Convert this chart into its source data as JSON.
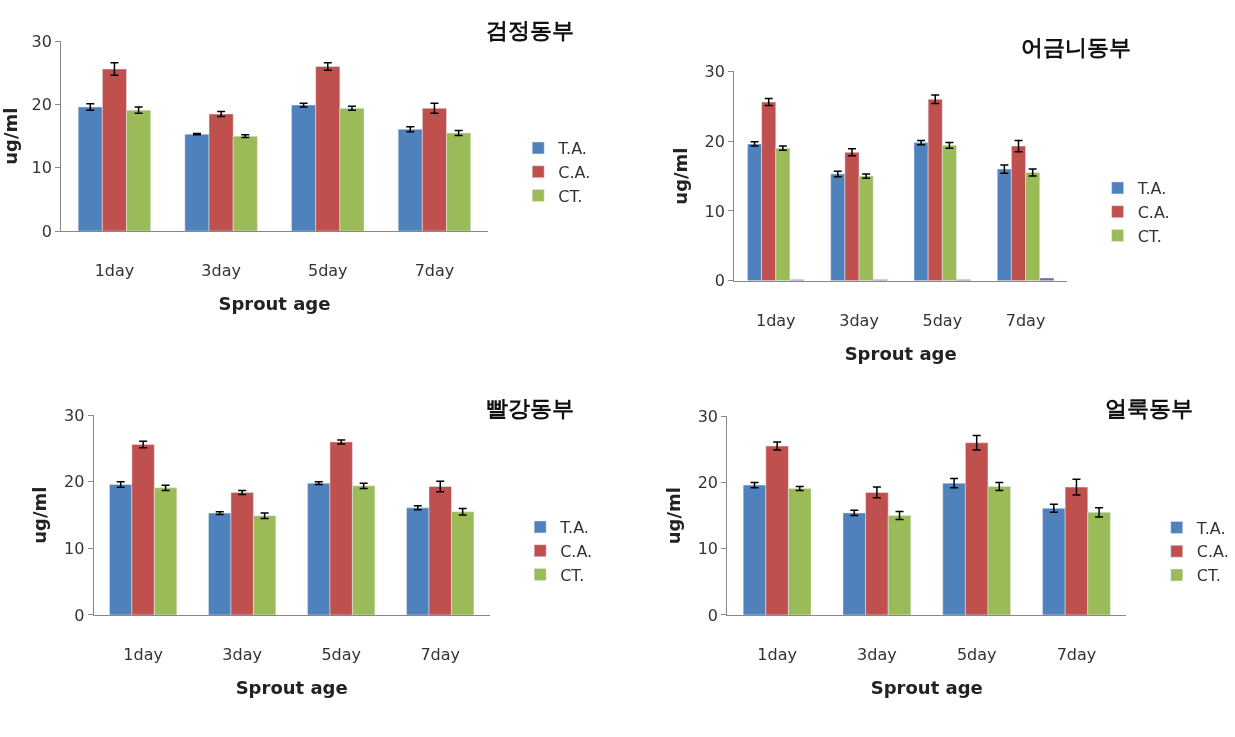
{
  "chart_data": [
    {
      "type": "bar",
      "title": "검정동부",
      "xlabel": "Sprout age",
      "ylabel": "ug/ml",
      "categories": [
        "1day",
        "3day",
        "5day",
        "7day"
      ],
      "ylim": [
        0,
        30
      ],
      "yticks": [
        0,
        10,
        20,
        30
      ],
      "legend": "right",
      "series": [
        {
          "name": "T.A.",
          "color": "#4f81bd",
          "values": [
            19.6,
            15.3,
            19.9,
            16.1
          ],
          "errors": [
            0.5,
            0.1,
            0.3,
            0.4
          ]
        },
        {
          "name": "C.A.",
          "color": "#c0504d",
          "values": [
            25.6,
            18.5,
            26.0,
            19.4
          ],
          "errors": [
            1.0,
            0.4,
            0.6,
            0.8
          ]
        },
        {
          "name": "CT.",
          "color": "#9bbb59",
          "values": [
            19.1,
            15.0,
            19.4,
            15.5
          ],
          "errors": [
            0.5,
            0.2,
            0.3,
            0.4
          ]
        }
      ]
    },
    {
      "type": "bar",
      "title": "어금니동부",
      "xlabel": "Sprout age",
      "ylabel": "ug/ml",
      "categories": [
        "1day",
        "3day",
        "5day",
        "7day"
      ],
      "ylim": [
        0,
        30
      ],
      "yticks": [
        0,
        10,
        20,
        30
      ],
      "legend": "right",
      "series": [
        {
          "name": "T.A.",
          "color": "#4f81bd",
          "values": [
            19.6,
            15.3,
            19.8,
            16.0
          ],
          "errors": [
            0.3,
            0.4,
            0.3,
            0.6
          ]
        },
        {
          "name": "C.A.",
          "color": "#c0504d",
          "values": [
            25.6,
            18.4,
            26.0,
            19.3
          ],
          "errors": [
            0.5,
            0.5,
            0.6,
            0.8
          ]
        },
        {
          "name": "CT.",
          "color": "#9bbb59",
          "values": [
            19.0,
            15.0,
            19.4,
            15.5
          ],
          "errors": [
            0.3,
            0.3,
            0.4,
            0.5
          ]
        },
        {
          "color": "#8064a2",
          "values": [
            0.2,
            0.2,
            0.2,
            0.4
          ]
        }
      ]
    },
    {
      "type": "bar",
      "title": "빨강동부",
      "xlabel": "Sprout age",
      "ylabel": "ug/ml",
      "categories": [
        "1day",
        "3day",
        "5day",
        "7day"
      ],
      "ylim": [
        0,
        30
      ],
      "yticks": [
        0,
        10,
        20,
        30
      ],
      "legend": "right",
      "series": [
        {
          "name": "T.A.",
          "color": "#4f81bd",
          "values": [
            19.6,
            15.3,
            19.8,
            16.1
          ],
          "errors": [
            0.4,
            0.2,
            0.2,
            0.3
          ]
        },
        {
          "name": "C.A.",
          "color": "#c0504d",
          "values": [
            25.6,
            18.4,
            26.0,
            19.3
          ],
          "errors": [
            0.5,
            0.3,
            0.3,
            0.8
          ]
        },
        {
          "name": "CT.",
          "color": "#9bbb59",
          "values": [
            19.1,
            14.9,
            19.4,
            15.5
          ],
          "errors": [
            0.4,
            0.4,
            0.4,
            0.5
          ]
        }
      ]
    },
    {
      "type": "bar",
      "title": "얼룩동부",
      "xlabel": "Sprout age",
      "ylabel": "ug/ml",
      "categories": [
        "1day",
        "3day",
        "5day",
        "7day"
      ],
      "ylim": [
        0,
        30
      ],
      "yticks": [
        0,
        10,
        20,
        30
      ],
      "legend": "right",
      "series": [
        {
          "name": "T.A.",
          "color": "#4f81bd",
          "values": [
            19.6,
            15.4,
            19.9,
            16.1
          ],
          "errors": [
            0.4,
            0.4,
            0.7,
            0.6
          ]
        },
        {
          "name": "C.A.",
          "color": "#c0504d",
          "values": [
            25.5,
            18.5,
            26.0,
            19.3
          ],
          "errors": [
            0.6,
            0.8,
            1.1,
            1.2
          ]
        },
        {
          "name": "CT.",
          "color": "#9bbb59",
          "values": [
            19.1,
            15.0,
            19.4,
            15.5
          ],
          "errors": [
            0.3,
            0.6,
            0.6,
            0.7
          ]
        }
      ]
    }
  ]
}
